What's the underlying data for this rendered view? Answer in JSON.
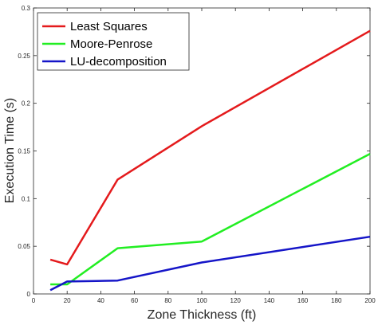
{
  "chart_data": {
    "type": "line",
    "title": "",
    "xlabel": "Zone Thickness (ft)",
    "ylabel": "Execution Time (s)",
    "xlim": [
      0,
      200
    ],
    "ylim": [
      0,
      0.3
    ],
    "x_ticks": [
      0,
      20,
      40,
      60,
      80,
      100,
      120,
      140,
      160,
      180,
      200
    ],
    "y_ticks": [
      0,
      0.05,
      0.1,
      0.15,
      0.2,
      0.25,
      0.3
    ],
    "y_tick_labels": [
      "0",
      "0.05",
      "0.1",
      "0.15",
      "0.2",
      "0.25",
      "0.3"
    ],
    "grid": false,
    "legend_position": "top-left",
    "series": [
      {
        "name": "Least Squares",
        "color": "#e41a1c",
        "x": [
          10,
          20,
          50,
          100,
          200
        ],
        "y": [
          0.036,
          0.031,
          0.12,
          0.176,
          0.276
        ]
      },
      {
        "name": "Moore-Penrose",
        "color": "#22ee22",
        "x": [
          10,
          20,
          50,
          100,
          200
        ],
        "y": [
          0.01,
          0.01,
          0.048,
          0.055,
          0.147
        ]
      },
      {
        "name": "LU-decomposition",
        "color": "#1515c8",
        "x": [
          10,
          20,
          50,
          100,
          200
        ],
        "y": [
          0.004,
          0.013,
          0.014,
          0.033,
          0.06
        ]
      }
    ]
  }
}
